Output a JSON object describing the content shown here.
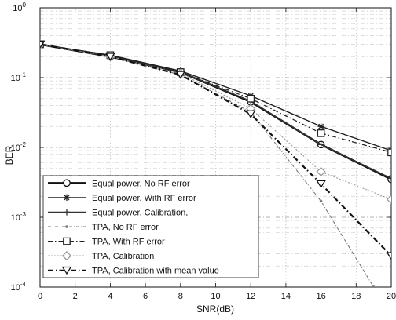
{
  "chart_data": {
    "type": "line",
    "xlabel": "SNR(dB)",
    "ylabel": "BER",
    "xlim": [
      0,
      20
    ],
    "ylim": [
      0.0001,
      1
    ],
    "yscale": "log",
    "grid": true,
    "legend_position": "bottom-left",
    "x_ticks": [
      0,
      2,
      4,
      6,
      8,
      10,
      12,
      14,
      16,
      18,
      20
    ],
    "y_ticks": [
      {
        "value": 1,
        "base": "10",
        "exp": "0"
      },
      {
        "value": 0.1,
        "base": "10",
        "exp": "-1"
      },
      {
        "value": 0.01,
        "base": "10",
        "exp": "-2"
      },
      {
        "value": 0.001,
        "base": "10",
        "exp": "-3"
      },
      {
        "value": 0.0001,
        "base": "10",
        "exp": "-4"
      }
    ],
    "series": [
      {
        "name": "Equal power, No RF error",
        "x": [
          0,
          4,
          8,
          12,
          16,
          20
        ],
        "y": [
          0.3,
          0.2,
          0.12,
          0.045,
          0.011,
          0.0035
        ],
        "color": "#111111",
        "dash": "",
        "width": 2.6,
        "marker": "circle"
      },
      {
        "name": "Equal power, With RF error",
        "x": [
          0,
          4,
          8,
          12,
          16,
          20
        ],
        "y": [
          0.3,
          0.21,
          0.125,
          0.055,
          0.02,
          0.009
        ],
        "color": "#222222",
        "dash": "",
        "width": 1.4,
        "marker": "star"
      },
      {
        "name": "Equal power, Calibration,",
        "x": [
          0,
          4,
          8,
          12,
          16,
          20
        ],
        "y": [
          0.3,
          0.2,
          0.12,
          0.046,
          0.011,
          0.0036
        ],
        "color": "#333333",
        "dash": "",
        "width": 1.6,
        "marker": "plus"
      },
      {
        "name": "TPA, No RF error",
        "x": [
          0,
          4,
          8,
          12,
          16,
          19
        ],
        "y": [
          0.3,
          0.2,
          0.11,
          0.032,
          0.0017,
          0.0001
        ],
        "color": "#777777",
        "dash": "4 2 1 2",
        "width": 1.1,
        "marker": "dot"
      },
      {
        "name": "TPA, With RF error",
        "x": [
          0,
          4,
          8,
          12,
          16,
          20
        ],
        "y": [
          0.3,
          0.21,
          0.12,
          0.05,
          0.016,
          0.0085
        ],
        "color": "#222222",
        "dash": "6 3 1.5 3",
        "width": 1.3,
        "marker": "square"
      },
      {
        "name": "TPA, Calibration",
        "x": [
          0,
          4,
          8,
          12,
          16,
          20
        ],
        "y": [
          0.3,
          0.2,
          0.115,
          0.036,
          0.0045,
          0.0018
        ],
        "color": "#999999",
        "dash": "2 2",
        "width": 1.1,
        "marker": "diamond"
      },
      {
        "name": "TPA, Calibration with mean value",
        "x": [
          0,
          4,
          8,
          12,
          16,
          20
        ],
        "y": [
          0.3,
          0.2,
          0.11,
          0.03,
          0.003,
          0.00028
        ],
        "color": "#111111",
        "dash": "7 3 1.5 3",
        "width": 2.2,
        "marker": "triangle-down"
      }
    ]
  }
}
